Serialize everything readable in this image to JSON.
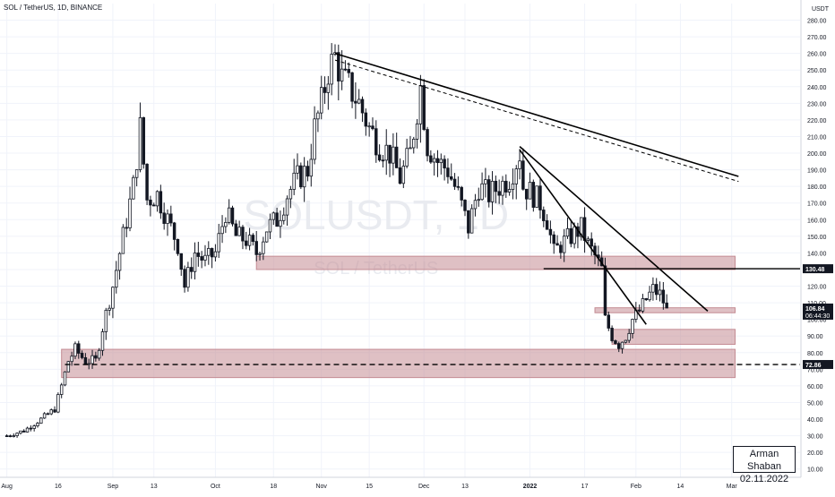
{
  "header": {
    "symbol_line": "SOL / TetherUS, 1D, BINANCE"
  },
  "watermark": {
    "ticker": "SOLUSDT, 1D",
    "name": "SOL / TetherUS"
  },
  "signature": {
    "name": "Arman Shaban",
    "date": "02.11.2022"
  },
  "colors": {
    "up": "#ffffff",
    "down": "#131722",
    "wick": "#131722",
    "zone": "#c48c94",
    "grid": "#f0f3fa",
    "text": "#131722",
    "label_bg": "#131722",
    "label_fg": "#ffffff"
  },
  "chart_data": {
    "type": "candlestick",
    "y_axis": {
      "unit": "USDT",
      "min": 5,
      "max": 290,
      "ticks": [
        "280.00",
        "270.00",
        "260.00",
        "250.00",
        "240.00",
        "230.00",
        "220.00",
        "210.00",
        "200.00",
        "190.00",
        "180.00",
        "170.00",
        "160.00",
        "150.00",
        "140.00",
        "130.00",
        "120.00",
        "110.00",
        "100.00",
        "90.00",
        "80.00",
        "70.00",
        "60.00",
        "50.00",
        "40.00",
        "30.00",
        "20.00",
        "10.00"
      ]
    },
    "x_axis": {
      "ticks": [
        {
          "label": "Aug",
          "day": 0
        },
        {
          "label": "16",
          "day": 15
        },
        {
          "label": "Sep",
          "day": 31
        },
        {
          "label": "13",
          "day": 43
        },
        {
          "label": "Oct",
          "day": 61
        },
        {
          "label": "18",
          "day": 78
        },
        {
          "label": "Nov",
          "day": 92
        },
        {
          "label": "15",
          "day": 106
        },
        {
          "label": "Dec",
          "day": 122
        },
        {
          "label": "13",
          "day": 134
        },
        {
          "label": "2022",
          "day": 153
        },
        {
          "label": "17",
          "day": 169
        },
        {
          "label": "Feb",
          "day": 184
        },
        {
          "label": "14",
          "day": 197
        },
        {
          "label": "Mar",
          "day": 212
        }
      ],
      "range_days": [
        -2,
        232
      ]
    },
    "price_labels": [
      {
        "value": 130.48,
        "text": "130.48"
      },
      {
        "value": 106.84,
        "text": "106.84"
      },
      {
        "value": 72.86,
        "text": "72.86"
      }
    ],
    "countdown": "06:44:30",
    "price_path": [
      [
        0,
        30
      ],
      [
        5,
        33
      ],
      [
        10,
        40
      ],
      [
        14,
        46
      ],
      [
        16,
        60
      ],
      [
        18,
        75
      ],
      [
        20,
        82
      ],
      [
        23,
        75
      ],
      [
        26,
        75
      ],
      [
        28,
        95
      ],
      [
        31,
        120
      ],
      [
        34,
        150
      ],
      [
        37,
        180
      ],
      [
        39,
        215
      ],
      [
        41,
        172
      ],
      [
        44,
        175
      ],
      [
        47,
        160
      ],
      [
        50,
        145
      ],
      [
        52,
        120
      ],
      [
        55,
        140
      ],
      [
        58,
        135
      ],
      [
        61,
        140
      ],
      [
        64,
        165
      ],
      [
        67,
        150
      ],
      [
        70,
        148
      ],
      [
        73,
        140
      ],
      [
        76,
        155
      ],
      [
        79,
        160
      ],
      [
        82,
        175
      ],
      [
        85,
        185
      ],
      [
        88,
        190
      ],
      [
        90,
        215
      ],
      [
        92,
        230
      ],
      [
        94,
        250
      ],
      [
        96,
        258
      ],
      [
        98,
        245
      ],
      [
        100,
        240
      ],
      [
        103,
        230
      ],
      [
        106,
        215
      ],
      [
        109,
        205
      ],
      [
        112,
        200
      ],
      [
        115,
        185
      ],
      [
        118,
        200
      ],
      [
        121,
        240
      ],
      [
        123,
        205
      ],
      [
        126,
        195
      ],
      [
        129,
        190
      ],
      [
        132,
        175
      ],
      [
        135,
        155
      ],
      [
        138,
        180
      ],
      [
        141,
        175
      ],
      [
        144,
        180
      ],
      [
        147,
        185
      ],
      [
        149,
        195
      ],
      [
        150,
        200
      ],
      [
        151,
        180
      ],
      [
        154,
        175
      ],
      [
        156,
        170
      ],
      [
        158,
        160
      ],
      [
        160,
        140
      ],
      [
        162,
        145
      ],
      [
        165,
        150
      ],
      [
        168,
        155
      ],
      [
        170,
        145
      ],
      [
        172,
        138
      ],
      [
        174,
        130
      ],
      [
        175,
        100
      ],
      [
        177,
        90
      ],
      [
        179,
        85
      ],
      [
        181,
        90
      ],
      [
        183,
        100
      ],
      [
        185,
        105
      ],
      [
        187,
        112
      ],
      [
        189,
        118
      ],
      [
        191,
        115
      ],
      [
        193,
        106.84
      ]
    ],
    "price_seed": 7,
    "zones": [
      {
        "day_start": 73,
        "day_end": 213,
        "low": 130,
        "high": 138
      },
      {
        "day_start": 172,
        "day_end": 213,
        "low": 104,
        "high": 107
      },
      {
        "day_start": 177,
        "day_end": 213,
        "low": 85,
        "high": 94
      },
      {
        "day_start": 16,
        "day_end": 213,
        "low": 65,
        "high": 82
      }
    ],
    "levels": [
      {
        "value": 130.48,
        "day_start": 157,
        "style": "solid"
      },
      {
        "value": 72.86,
        "day_start": 17,
        "style": "dashed"
      }
    ],
    "trendlines": [
      {
        "from": [
          96,
          260
        ],
        "to": [
          214,
          186
        ],
        "style": "solid"
      },
      {
        "from": [
          96,
          256
        ],
        "to": [
          214,
          183
        ],
        "style": "dashed"
      },
      {
        "from": [
          150,
          204
        ],
        "to": [
          205,
          105
        ],
        "style": "solid"
      },
      {
        "from": [
          150,
          202
        ],
        "to": [
          187,
          97
        ],
        "style": "solid"
      }
    ]
  }
}
